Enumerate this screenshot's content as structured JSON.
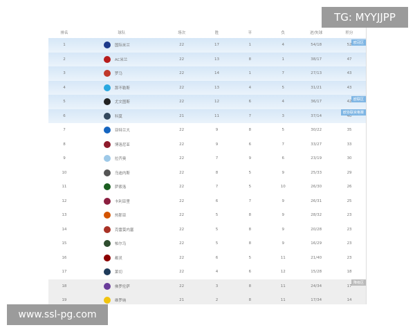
{
  "watermark_top": "TG: MYYJJPP",
  "watermark_bottom": "www.ssl-pg.com",
  "headers": [
    "排名",
    "球队",
    "场次",
    "胜",
    "平",
    "负",
    "进/失球",
    "积分"
  ],
  "zones": {
    "ucl": "欧冠区",
    "uel": "欧联区",
    "uecl": "欧协联资格赛",
    "relegation": "降级区"
  },
  "colors": {
    "top_zone": "#d6e7f7",
    "relegation_zone": "#eeeeee",
    "badge": "#7fb6e4"
  },
  "rows": [
    {
      "rank": "1",
      "team": "国际米兰",
      "p": "22",
      "w": "17",
      "d": "1",
      "l": "4",
      "g": "54/18",
      "pts": "52",
      "logo": "#1e3a8a"
    },
    {
      "rank": "2",
      "team": "AC米兰",
      "p": "22",
      "w": "13",
      "d": "8",
      "l": "1",
      "g": "38/17",
      "pts": "47",
      "logo": "#b71c1c"
    },
    {
      "rank": "3",
      "team": "罗马",
      "p": "22",
      "w": "14",
      "d": "1",
      "l": "7",
      "g": "27/13",
      "pts": "43",
      "logo": "#c0392b"
    },
    {
      "rank": "4",
      "team": "那不勒斯",
      "p": "22",
      "w": "13",
      "d": "4",
      "l": "5",
      "g": "31/21",
      "pts": "43",
      "logo": "#29a8e0"
    },
    {
      "rank": "5",
      "team": "尤文图斯",
      "p": "22",
      "w": "12",
      "d": "6",
      "l": "4",
      "g": "36/17",
      "pts": "42",
      "logo": "#222"
    },
    {
      "rank": "6",
      "team": "科莫",
      "p": "21",
      "w": "11",
      "d": "7",
      "l": "3",
      "g": "37/14",
      "pts": "40",
      "logo": "#34495e"
    },
    {
      "rank": "7",
      "team": "亚特兰大",
      "p": "22",
      "w": "9",
      "d": "8",
      "l": "5",
      "g": "30/22",
      "pts": "35",
      "logo": "#1565c0"
    },
    {
      "rank": "8",
      "team": "博洛尼亚",
      "p": "22",
      "w": "9",
      "d": "6",
      "l": "7",
      "g": "33/27",
      "pts": "33",
      "logo": "#8e1b2b"
    },
    {
      "rank": "9",
      "team": "拉齐奥",
      "p": "22",
      "w": "7",
      "d": "9",
      "l": "6",
      "g": "23/19",
      "pts": "30",
      "logo": "#9ec9e8"
    },
    {
      "rank": "10",
      "team": "乌迪内斯",
      "p": "22",
      "w": "8",
      "d": "5",
      "l": "9",
      "g": "25/33",
      "pts": "29",
      "logo": "#555"
    },
    {
      "rank": "11",
      "team": "萨索洛",
      "p": "22",
      "w": "7",
      "d": "5",
      "l": "10",
      "g": "26/30",
      "pts": "26",
      "logo": "#1b5e20"
    },
    {
      "rank": "12",
      "team": "卡利亚里",
      "p": "22",
      "w": "6",
      "d": "7",
      "l": "9",
      "g": "26/31",
      "pts": "25",
      "logo": "#8b1e3f"
    },
    {
      "rank": "13",
      "team": "热那亚",
      "p": "22",
      "w": "5",
      "d": "8",
      "l": "9",
      "g": "28/32",
      "pts": "23",
      "logo": "#d35400"
    },
    {
      "rank": "14",
      "team": "克雷莫内塞",
      "p": "22",
      "w": "5",
      "d": "8",
      "l": "9",
      "g": "20/28",
      "pts": "23",
      "logo": "#a93226"
    },
    {
      "rank": "15",
      "team": "帕尔马",
      "p": "22",
      "w": "5",
      "d": "8",
      "l": "9",
      "g": "16/29",
      "pts": "23",
      "logo": "#2e4d2e"
    },
    {
      "rank": "16",
      "team": "都灵",
      "p": "22",
      "w": "6",
      "d": "5",
      "l": "11",
      "g": "21/40",
      "pts": "23",
      "logo": "#8b0000"
    },
    {
      "rank": "17",
      "team": "莱切",
      "p": "22",
      "w": "4",
      "d": "6",
      "l": "12",
      "g": "15/28",
      "pts": "18",
      "logo": "#1f3b5a"
    },
    {
      "rank": "18",
      "team": "佛罗伦萨",
      "p": "22",
      "w": "3",
      "d": "8",
      "l": "11",
      "g": "24/34",
      "pts": "17",
      "logo": "#6a3d9a"
    },
    {
      "rank": "19",
      "team": "维罗纳",
      "p": "21",
      "w": "2",
      "d": "8",
      "l": "11",
      "g": "17/34",
      "pts": "14",
      "logo": "#f1c40f"
    }
  ]
}
